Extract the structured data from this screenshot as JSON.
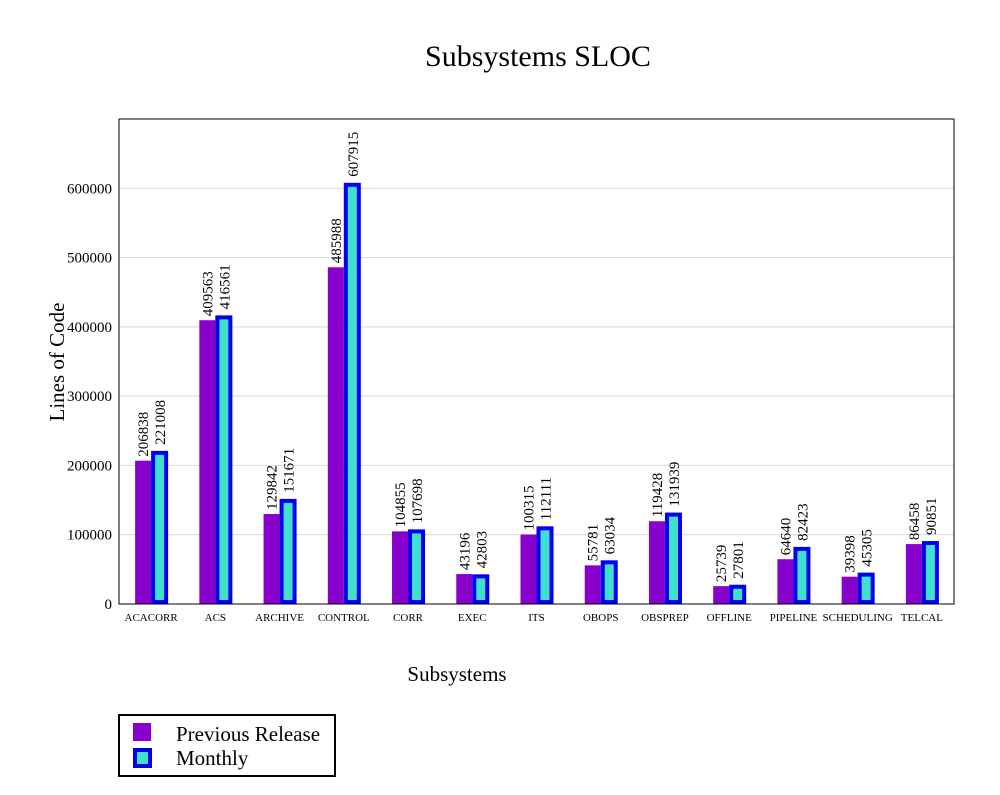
{
  "chart_data": {
    "type": "bar",
    "title": "Subsystems SLOC",
    "xlabel": "Subsystems",
    "ylabel": "Lines of Code",
    "ylim": [
      0,
      700000
    ],
    "yticks": [
      0,
      100000,
      200000,
      300000,
      400000,
      500000,
      600000
    ],
    "ytick_labels": [
      "0",
      "100000",
      "200000",
      "300000",
      "400000",
      "500000",
      "600000"
    ],
    "grid": true,
    "legend_position": "bottom-left",
    "categories": [
      "ACACORR",
      "ACS",
      "ARCHIVE",
      "CONTROL",
      "CORR",
      "EXEC",
      "ITS",
      "OBOPS",
      "OBSPREP",
      "OFFLINE",
      "PIPELINE",
      "SCHEDULING",
      "TELCAL"
    ],
    "series": [
      {
        "name": "Previous Release",
        "color": "#8800cc",
        "values": [
          206838,
          409563,
          129842,
          485988,
          104855,
          43196,
          100315,
          55781,
          119428,
          25739,
          64640,
          39398,
          86458
        ]
      },
      {
        "name": "Monthly",
        "color": "#40e0d0",
        "border": "#0000ee",
        "values": [
          221008,
          416561,
          151671,
          607915,
          107698,
          42803,
          112111,
          63034,
          131939,
          27801,
          82423,
          45305,
          90851
        ]
      }
    ]
  }
}
